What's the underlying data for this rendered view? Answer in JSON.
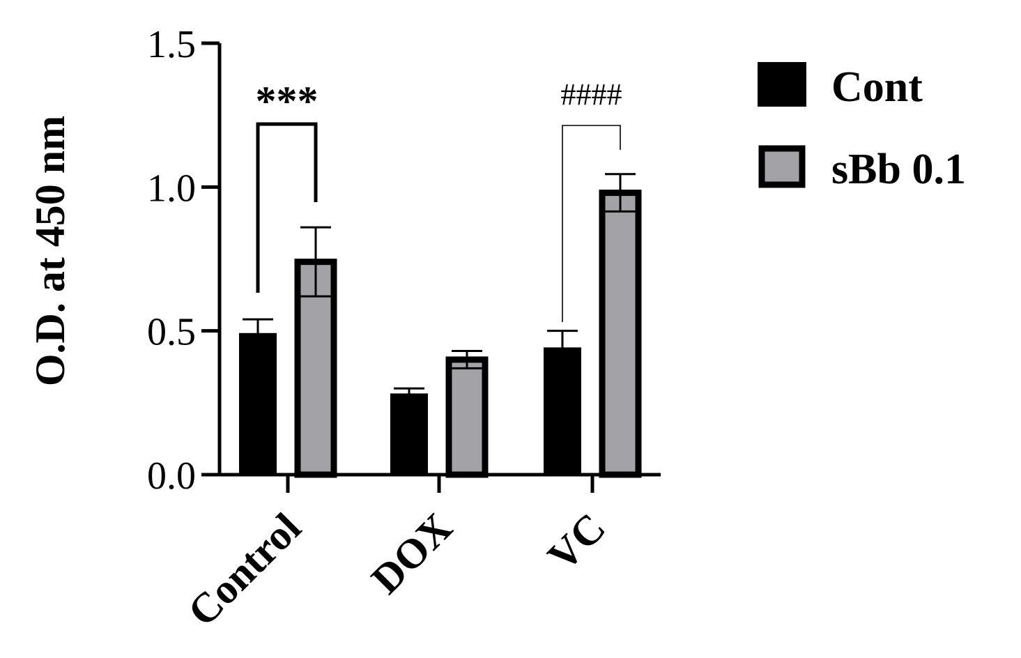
{
  "chart_data": {
    "type": "bar",
    "title": "",
    "xlabel": "",
    "ylabel": "O.D. at 450 nm",
    "ylim": [
      0,
      1.5
    ],
    "yticks": [
      0.0,
      0.5,
      1.0,
      1.5
    ],
    "ytick_labels": [
      "0.0",
      "0.5",
      "1.0",
      "1.5"
    ],
    "categories": [
      "Control",
      "DOX",
      "VC"
    ],
    "series": [
      {
        "name": "Cont",
        "color": "#000000",
        "values": [
          0.49,
          0.28,
          0.44
        ],
        "errors": [
          0.05,
          0.02,
          0.06
        ]
      },
      {
        "name": "sBb 0.1",
        "color": "#a3a3a7",
        "values": [
          0.74,
          0.4,
          0.98
        ],
        "errors": [
          0.12,
          0.03,
          0.065
        ]
      }
    ],
    "legend_position": "top-right",
    "grid": false,
    "annotations": [
      {
        "text": "***",
        "category": "Control",
        "between_series": [
          "Cont",
          "sBb 0.1"
        ]
      },
      {
        "text": "####",
        "category": "VC",
        "between_series": [
          "Cont",
          "sBb 0.1"
        ]
      }
    ]
  },
  "colors": {
    "axis": "#000000",
    "series_outline": "#000000"
  }
}
